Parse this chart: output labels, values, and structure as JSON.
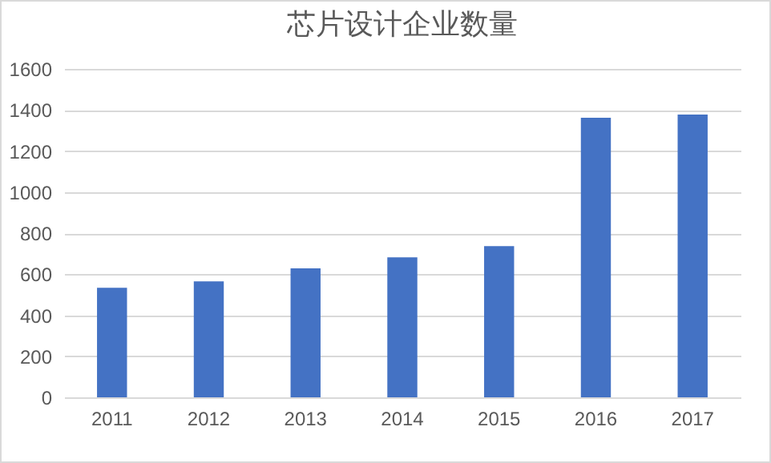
{
  "chart_data": {
    "type": "bar",
    "title": "芯片设计企业数量",
    "categories": [
      "2011",
      "2012",
      "2013",
      "2014",
      "2015",
      "2016",
      "2017"
    ],
    "values": [
      534,
      565,
      628,
      682,
      737,
      1362,
      1378
    ],
    "color": "#4472c4",
    "ylim": [
      0,
      1600
    ],
    "yticks": [
      0,
      200,
      400,
      600,
      800,
      1000,
      1200,
      1400,
      1600
    ],
    "grid": "y"
  }
}
